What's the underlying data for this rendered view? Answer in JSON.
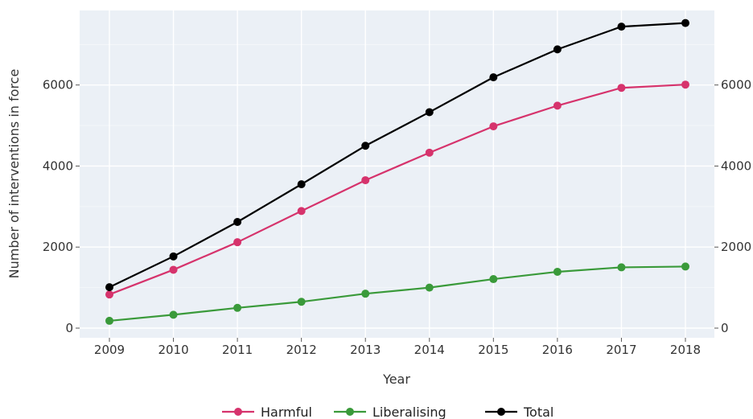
{
  "chart_data": {
    "type": "line",
    "title": "",
    "xlabel": "Year",
    "ylabel": "Number of interventions in force",
    "x": [
      "2009",
      "2010",
      "2011",
      "2012",
      "2013",
      "2014",
      "2015",
      "2016",
      "2017",
      "2018"
    ],
    "y_ticks": [
      "0",
      "2000",
      "4000",
      "6000"
    ],
    "y_ticks_right": [
      "0",
      "2000",
      "4000",
      "6000"
    ],
    "ylim": [
      0,
      7800
    ],
    "grid": true,
    "legend_position": "bottom",
    "series": [
      {
        "name": "Harmful",
        "color": "#d6336c",
        "values": [
          830,
          1440,
          2120,
          2890,
          3650,
          4330,
          4980,
          5490,
          5930,
          6010
        ]
      },
      {
        "name": "Liberalising",
        "color": "#3a9a3a",
        "values": [
          180,
          330,
          500,
          650,
          850,
          1000,
          1210,
          1390,
          1500,
          1520
        ]
      },
      {
        "name": "Total",
        "color": "#000000",
        "values": [
          1010,
          1770,
          2620,
          3550,
          4500,
          5330,
          6190,
          6880,
          7440,
          7530
        ]
      }
    ]
  }
}
